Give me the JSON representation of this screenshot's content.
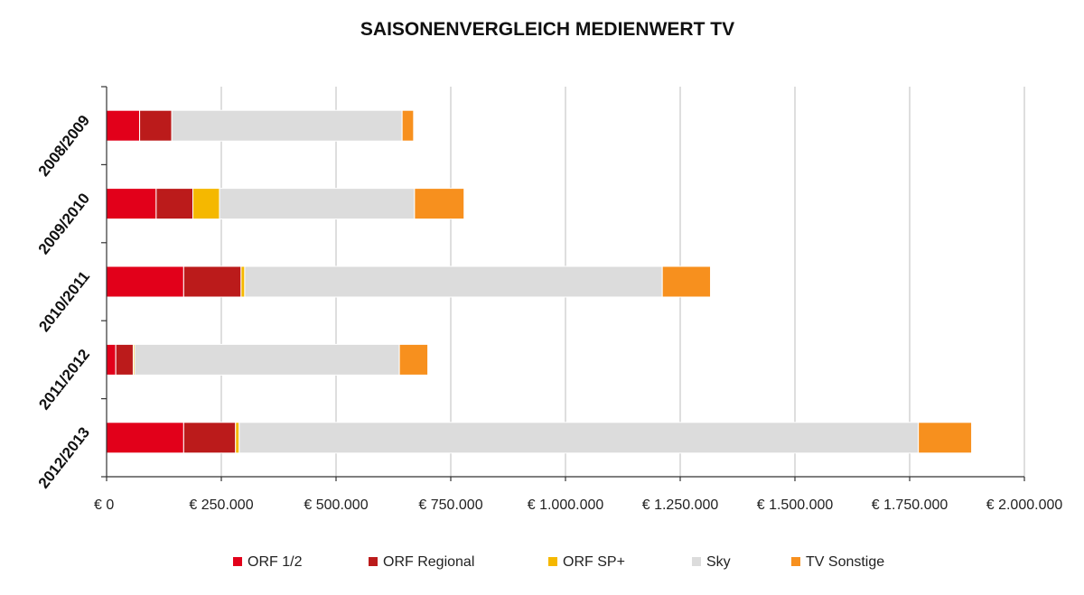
{
  "chart_data": {
    "type": "bar",
    "orientation": "horizontal",
    "stacked": true,
    "title": "SAISONENVERGLEICH MEDIENWERT TV",
    "xlabel": "",
    "ylabel": "",
    "xlim": [
      0,
      2000000
    ],
    "x_ticks": [
      0,
      250000,
      500000,
      750000,
      1000000,
      1250000,
      1500000,
      1750000,
      2000000
    ],
    "x_tick_labels": [
      "€ 0",
      "€ 250.000",
      "€ 500.000",
      "€ 750.000",
      "€ 1.000.000",
      "€ 1.250.000",
      "€ 1.500.000",
      "€ 1.750.000",
      "€ 2.000.000"
    ],
    "grid": "vertical",
    "legend_position": "bottom",
    "categories": [
      "2008/2009",
      "2009/2010",
      "2010/2011",
      "2011/2012",
      "2012/2013"
    ],
    "series": [
      {
        "name": "ORF 1/2",
        "color": "#e2001a",
        "values": [
          72000,
          108000,
          168000,
          20000,
          168000
        ]
      },
      {
        "name": "ORF Regional",
        "color": "#bb1b1b",
        "values": [
          70000,
          80000,
          125000,
          38000,
          113000
        ]
      },
      {
        "name": "ORF SP+",
        "color": "#f5b800",
        "values": [
          0,
          58000,
          8000,
          3000,
          8000
        ]
      },
      {
        "name": "Sky",
        "color": "#dcdcdc",
        "values": [
          502000,
          425000,
          910000,
          577000,
          1480000
        ]
      },
      {
        "name": "TV Sonstige",
        "color": "#f7901e",
        "values": [
          25000,
          108000,
          105000,
          62000,
          116000
        ]
      }
    ]
  }
}
